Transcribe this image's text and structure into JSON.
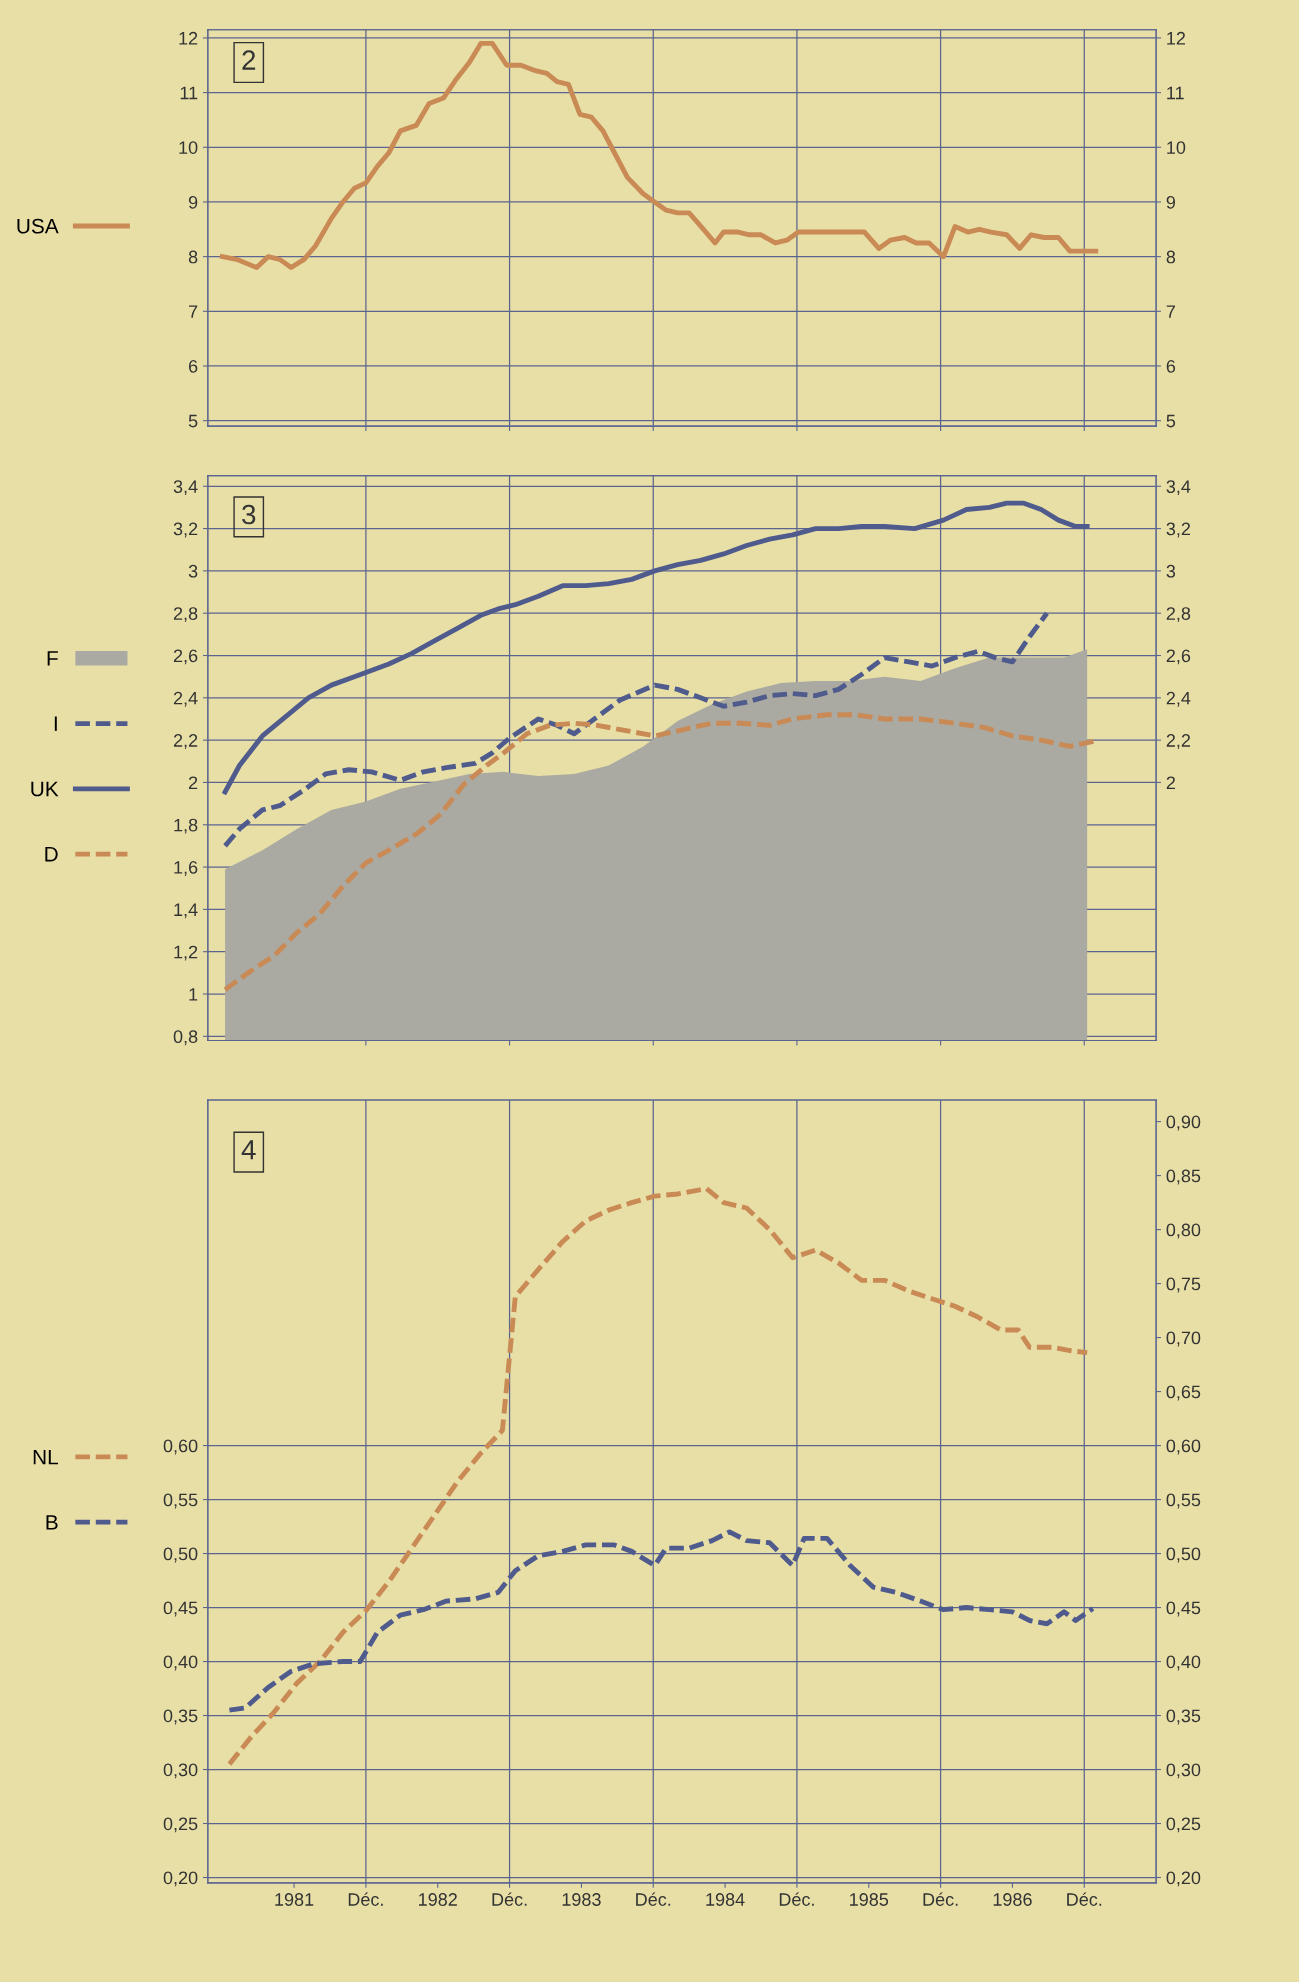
{
  "chart_data": [
    {
      "type": "line",
      "title": "2",
      "xlim": [
        1980.9,
        1987.5
      ],
      "ylim": [
        4.9,
        12.15
      ],
      "yticks": [
        5,
        6,
        7,
        8,
        9,
        10,
        11,
        12
      ],
      "y2lim": [
        4.9,
        12.15
      ],
      "y2ticks": [
        5,
        6,
        7,
        8,
        9,
        10,
        11,
        12
      ],
      "xticks": [
        {
          "value": 1982,
          "label": null
        },
        {
          "value": 1983,
          "label": null
        },
        {
          "value": 1984,
          "label": null
        },
        {
          "value": 1985,
          "label": null
        },
        {
          "value": 1986,
          "label": null
        },
        {
          "value": 1987,
          "label": null
        }
      ],
      "tick_labels": "y",
      "grid": "y",
      "legend": "left",
      "ref_lines": [
        {
          "axis": "x",
          "value": 1982,
          "color": "#5b6491"
        },
        {
          "axis": "x",
          "value": 1983,
          "color": "#5b6491"
        },
        {
          "axis": "x",
          "value": 1984,
          "color": "#5b6491"
        },
        {
          "axis": "x",
          "value": 1985,
          "color": "#5b6491"
        },
        {
          "axis": "x",
          "value": 1986,
          "color": "#5b6491"
        },
        {
          "axis": "x",
          "value": 1987,
          "color": "#5b6491"
        }
      ],
      "series": [
        {
          "name": "USA",
          "color": "#c98a55",
          "line_style": "solid",
          "x": [
            1981.0,
            1981.1,
            1981.24,
            1981.32,
            1981.4,
            1981.48,
            1981.57,
            1981.65,
            1981.76,
            1981.84,
            1981.92,
            1982.0,
            1982.08,
            1982.16,
            1982.24,
            1982.35,
            1982.44,
            1982.54,
            1982.63,
            1982.72,
            1982.8,
            1982.88,
            1982.98,
            1983.08,
            1983.18,
            1983.26,
            1983.33,
            1983.41,
            1983.49,
            1983.57,
            1983.65,
            1983.73,
            1983.82,
            1983.93,
            1984.01,
            1984.09,
            1984.17,
            1984.25,
            1984.35,
            1984.43,
            1984.49,
            1984.59,
            1984.67,
            1984.75,
            1984.85,
            1984.93,
            1985.01,
            1985.11,
            1985.21,
            1985.29,
            1985.39,
            1985.47,
            1985.57,
            1985.65,
            1985.75,
            1985.83,
            1985.92,
            1986.02,
            1986.1,
            1986.19,
            1986.27,
            1986.35,
            1986.46,
            1986.55,
            1986.63,
            1986.72,
            1986.82,
            1986.9,
            1987.0,
            1987.08
          ],
          "values": [
            8.0,
            7.95,
            7.8,
            8.0,
            7.95,
            7.8,
            7.95,
            8.2,
            8.7,
            9.0,
            9.25,
            9.35,
            9.65,
            9.9,
            10.3,
            10.4,
            10.8,
            10.9,
            11.25,
            11.55,
            11.9,
            11.9,
            11.5,
            11.5,
            11.4,
            11.35,
            11.2,
            11.15,
            10.6,
            10.55,
            10.3,
            9.9,
            9.45,
            9.15,
            9.0,
            8.85,
            8.8,
            8.8,
            8.5,
            8.25,
            8.45,
            8.45,
            8.4,
            8.4,
            8.25,
            8.3,
            8.45,
            8.45,
            8.45,
            8.45,
            8.45,
            8.45,
            8.15,
            8.3,
            8.35,
            8.25,
            8.25,
            8.0,
            8.55,
            8.45,
            8.5,
            8.45,
            8.4,
            8.15,
            8.4,
            8.35,
            8.35,
            8.1,
            8.1,
            8.1
          ]
        }
      ]
    },
    {
      "type": "line",
      "title": "3",
      "xlim": [
        1980.9,
        1987.5
      ],
      "ylim": [
        0.78,
        3.45
      ],
      "yticks": [
        {
          "value": 0.8,
          "label": "0,8"
        },
        {
          "value": 1,
          "label": "1"
        },
        {
          "value": 1.2,
          "label": "1,2"
        },
        {
          "value": 1.4,
          "label": "1,4"
        },
        {
          "value": 1.6,
          "label": "1,6"
        },
        {
          "value": 1.8,
          "label": "1,8"
        },
        {
          "value": 2,
          "label": "2"
        },
        {
          "value": 2.2,
          "label": "2,2"
        },
        {
          "value": 2.4,
          "label": "2,4"
        },
        {
          "value": 2.6,
          "label": "2,6"
        },
        {
          "value": 2.8,
          "label": "2,8"
        },
        {
          "value": 3,
          "label": "3"
        },
        {
          "value": 3.2,
          "label": "3,2"
        },
        {
          "value": 3.4,
          "label": "3,4"
        }
      ],
      "y2lim": [
        0.78,
        3.45
      ],
      "y2ticks": [
        {
          "value": 2,
          "label": "2"
        },
        {
          "value": 2.2,
          "label": "2,2"
        },
        {
          "value": 2.4,
          "label": "2,4"
        },
        {
          "value": 2.6,
          "label": "2,6"
        },
        {
          "value": 2.8,
          "label": "2,8"
        },
        {
          "value": 3,
          "label": "3"
        },
        {
          "value": 3.2,
          "label": "3,2"
        },
        {
          "value": 3.4,
          "label": "3,4"
        }
      ],
      "xticks": [
        {
          "value": 1982,
          "label": null
        },
        {
          "value": 1983,
          "label": null
        },
        {
          "value": 1984,
          "label": null
        },
        {
          "value": 1985,
          "label": null
        },
        {
          "value": 1986,
          "label": null
        },
        {
          "value": 1987,
          "label": null
        }
      ],
      "tick_labels": "y",
      "grid": "y",
      "legend": "left",
      "ref_lines": [
        {
          "axis": "x",
          "value": 1982,
          "color": "#5b6491"
        },
        {
          "axis": "x",
          "value": 1983,
          "color": "#5b6491"
        },
        {
          "axis": "x",
          "value": 1984,
          "color": "#5b6491"
        },
        {
          "axis": "x",
          "value": 1985,
          "color": "#5b6491"
        },
        {
          "axis": "x",
          "value": 1986,
          "color": "#5b6491"
        },
        {
          "axis": "x",
          "value": 1987,
          "color": "#5b6491"
        }
      ],
      "series": [
        {
          "name": "F",
          "type": "area",
          "color": "#aaa9a2",
          "x": [
            1981.02,
            1981.28,
            1981.52,
            1981.76,
            1982.0,
            1982.24,
            1982.52,
            1982.72,
            1982.96,
            1983.2,
            1983.45,
            1983.69,
            1983.93,
            1984.17,
            1984.41,
            1984.65,
            1984.89,
            1985.13,
            1985.37,
            1985.61,
            1985.86,
            1986.1,
            1986.34,
            1986.58,
            1986.86,
            1987.02
          ],
          "values": [
            1.59,
            1.68,
            1.78,
            1.87,
            1.91,
            1.97,
            2.01,
            2.04,
            2.05,
            2.03,
            2.04,
            2.08,
            2.17,
            2.29,
            2.37,
            2.43,
            2.47,
            2.48,
            2.48,
            2.5,
            2.48,
            2.54,
            2.59,
            2.59,
            2.59,
            2.63
          ]
        },
        {
          "name": "I",
          "color": "#4f5b8c",
          "line_style": "dashed",
          "x": [
            1981.02,
            1981.12,
            1981.28,
            1981.4,
            1981.56,
            1981.72,
            1981.88,
            1982.04,
            1982.24,
            1982.4,
            1982.56,
            1982.76,
            1982.88,
            1983.0,
            1983.2,
            1983.33,
            1983.45,
            1983.61,
            1983.77,
            1984.01,
            1984.17,
            1984.33,
            1984.49,
            1984.65,
            1984.81,
            1984.97,
            1985.13,
            1985.29,
            1985.45,
            1985.61,
            1985.78,
            1985.94,
            1986.1,
            1986.26,
            1986.38,
            1986.5,
            1986.62,
            1986.74
          ],
          "values": [
            1.7,
            1.78,
            1.87,
            1.89,
            1.96,
            2.04,
            2.06,
            2.05,
            2.01,
            2.05,
            2.07,
            2.09,
            2.14,
            2.21,
            2.3,
            2.27,
            2.23,
            2.31,
            2.39,
            2.46,
            2.44,
            2.4,
            2.36,
            2.38,
            2.41,
            2.42,
            2.41,
            2.44,
            2.51,
            2.59,
            2.57,
            2.55,
            2.59,
            2.62,
            2.59,
            2.57,
            2.69,
            2.8
          ]
        },
        {
          "name": "UK",
          "color": "#4f5b8c",
          "line_style": "solid",
          "x": [
            1981.02,
            1981.12,
            1981.28,
            1981.44,
            1981.6,
            1981.76,
            1981.92,
            1982.0,
            1982.16,
            1982.32,
            1982.48,
            1982.64,
            1982.8,
            1982.92,
            1983.04,
            1983.2,
            1983.37,
            1983.53,
            1983.69,
            1983.85,
            1984.01,
            1984.17,
            1984.33,
            1984.49,
            1984.65,
            1984.81,
            1984.97,
            1985.13,
            1985.29,
            1985.45,
            1985.61,
            1985.82,
            1986.02,
            1986.18,
            1986.34,
            1986.46,
            1986.58,
            1986.7,
            1986.82,
            1986.94,
            1987.02
          ],
          "values": [
            1.955,
            2.08,
            2.22,
            2.31,
            2.4,
            2.46,
            2.5,
            2.52,
            2.56,
            2.61,
            2.67,
            2.73,
            2.79,
            2.82,
            2.84,
            2.88,
            2.93,
            2.93,
            2.94,
            2.96,
            3.0,
            3.03,
            3.05,
            3.08,
            3.12,
            3.15,
            3.17,
            3.2,
            3.2,
            3.21,
            3.21,
            3.2,
            3.24,
            3.29,
            3.3,
            3.32,
            3.32,
            3.29,
            3.24,
            3.21,
            3.21
          ]
        },
        {
          "name": "D",
          "color": "#c98a55",
          "line_style": "dashed",
          "x": [
            1981.02,
            1981.2,
            1981.36,
            1981.52,
            1981.68,
            1981.84,
            1982.0,
            1982.16,
            1982.36,
            1982.52,
            1982.68,
            1982.84,
            1982.96,
            1983.12,
            1983.28,
            1983.45,
            1983.61,
            1983.77,
            1984.01,
            1984.21,
            1984.41,
            1984.61,
            1984.81,
            1984.97,
            1985.21,
            1985.41,
            1985.61,
            1985.86,
            1986.1,
            1986.3,
            1986.5,
            1986.7,
            1986.9,
            1987.1
          ],
          "values": [
            1.02,
            1.11,
            1.18,
            1.29,
            1.38,
            1.51,
            1.62,
            1.68,
            1.76,
            1.85,
            1.99,
            2.08,
            2.14,
            2.23,
            2.27,
            2.28,
            2.27,
            2.25,
            2.22,
            2.25,
            2.28,
            2.28,
            2.27,
            2.3,
            2.32,
            2.32,
            2.3,
            2.3,
            2.28,
            2.26,
            2.22,
            2.2,
            2.17,
            2.2
          ]
        }
      ]
    },
    {
      "type": "line",
      "title": "4",
      "xlim": [
        1980.9,
        1987.5
      ],
      "ylim": [
        0.195,
        0.92
      ],
      "yticks": [
        {
          "value": 0.2,
          "label": "0,20"
        },
        {
          "value": 0.25,
          "label": "0,25"
        },
        {
          "value": 0.3,
          "label": "0,30"
        },
        {
          "value": 0.35,
          "label": "0,35"
        },
        {
          "value": 0.4,
          "label": "0,40"
        },
        {
          "value": 0.45,
          "label": "0,45"
        },
        {
          "value": 0.5,
          "label": "0,50"
        },
        {
          "value": 0.55,
          "label": "0,55"
        },
        {
          "value": 0.6,
          "label": "0,60"
        }
      ],
      "y2lim": [
        0.195,
        0.92
      ],
      "y2ticks": [
        {
          "value": 0.2,
          "label": "0,20"
        },
        {
          "value": 0.25,
          "label": "0,25"
        },
        {
          "value": 0.3,
          "label": "0,30"
        },
        {
          "value": 0.35,
          "label": "0,35"
        },
        {
          "value": 0.4,
          "label": "0,40"
        },
        {
          "value": 0.45,
          "label": "0,45"
        },
        {
          "value": 0.5,
          "label": "0,50"
        },
        {
          "value": 0.55,
          "label": "0,55"
        },
        {
          "value": 0.6,
          "label": "0,60"
        },
        {
          "value": 0.65,
          "label": "0,65"
        },
        {
          "value": 0.7,
          "label": "0,70"
        },
        {
          "value": 0.75,
          "label": "0,75"
        },
        {
          "value": 0.8,
          "label": "0,80"
        },
        {
          "value": 0.85,
          "label": "0,85"
        },
        {
          "value": 0.9,
          "label": "0,90"
        }
      ],
      "xticks": [
        {
          "value": 1981.5,
          "label": "1981"
        },
        {
          "value": 1982,
          "label": "Déc."
        },
        {
          "value": 1982.5,
          "label": "1982"
        },
        {
          "value": 1983,
          "label": "Déc."
        },
        {
          "value": 1983.5,
          "label": "1983"
        },
        {
          "value": 1984,
          "label": "Déc."
        },
        {
          "value": 1984.5,
          "label": "1984"
        },
        {
          "value": 1985,
          "label": "Déc."
        },
        {
          "value": 1985.5,
          "label": "1985"
        },
        {
          "value": 1986,
          "label": "Déc."
        },
        {
          "value": 1986.5,
          "label": "1986"
        },
        {
          "value": 1987,
          "label": "Déc."
        }
      ],
      "grid": "y",
      "legend": "left",
      "ref_lines": [
        {
          "axis": "x",
          "value": 1982,
          "color": "#5b6491"
        },
        {
          "axis": "x",
          "value": 1983,
          "color": "#5b6491"
        },
        {
          "axis": "x",
          "value": 1984,
          "color": "#5b6491"
        },
        {
          "axis": "x",
          "value": 1985,
          "color": "#5b6491"
        },
        {
          "axis": "x",
          "value": 1986,
          "color": "#5b6491"
        },
        {
          "axis": "x",
          "value": 1987,
          "color": "#5b6491"
        }
      ],
      "series": [
        {
          "name": "NL",
          "color": "#c98a55",
          "line_style": "dashed",
          "x": [
            1981.05,
            1981.2,
            1981.36,
            1981.52,
            1981.68,
            1981.84,
            1982.0,
            1982.16,
            1982.32,
            1982.48,
            1982.64,
            1982.8,
            1982.95,
            1983.04,
            1983.2,
            1983.37,
            1983.53,
            1983.69,
            1983.85,
            1984.01,
            1984.17,
            1984.37,
            1984.49,
            1984.65,
            1984.81,
            1984.97,
            1985.13,
            1985.29,
            1985.45,
            1985.61,
            1985.78,
            1985.94,
            1986.1,
            1986.26,
            1986.42,
            1986.54,
            1986.62,
            1986.78,
            1986.9,
            1987.02
          ],
          "values": [
            0.305,
            0.33,
            0.353,
            0.38,
            0.4,
            0.427,
            0.447,
            0.474,
            0.505,
            0.536,
            0.567,
            0.593,
            0.614,
            0.738,
            0.763,
            0.789,
            0.808,
            0.818,
            0.825,
            0.831,
            0.833,
            0.838,
            0.825,
            0.82,
            0.8,
            0.774,
            0.781,
            0.769,
            0.753,
            0.753,
            0.743,
            0.736,
            0.729,
            0.719,
            0.707,
            0.707,
            0.691,
            0.691,
            0.688,
            0.686
          ]
        },
        {
          "name": "B",
          "color": "#4f5b8c",
          "line_style": "dashed",
          "x": [
            1981.05,
            1981.16,
            1981.32,
            1981.48,
            1981.64,
            1981.84,
            1981.96,
            1982.08,
            1982.24,
            1982.4,
            1982.56,
            1982.76,
            1982.92,
            1983.04,
            1983.2,
            1983.37,
            1983.53,
            1983.73,
            1983.85,
            1984.01,
            1984.09,
            1984.25,
            1984.41,
            1984.53,
            1984.65,
            1984.81,
            1984.97,
            1985.05,
            1985.21,
            1985.37,
            1985.53,
            1985.69,
            1985.86,
            1986.02,
            1986.18,
            1986.34,
            1986.5,
            1986.62,
            1986.74,
            1986.86,
            1986.94,
            1987.06
          ],
          "values": [
            0.355,
            0.357,
            0.376,
            0.391,
            0.398,
            0.4,
            0.4,
            0.427,
            0.443,
            0.448,
            0.456,
            0.458,
            0.464,
            0.484,
            0.498,
            0.502,
            0.508,
            0.508,
            0.502,
            0.489,
            0.505,
            0.505,
            0.512,
            0.52,
            0.512,
            0.51,
            0.489,
            0.514,
            0.514,
            0.489,
            0.469,
            0.464,
            0.456,
            0.448,
            0.45,
            0.448,
            0.446,
            0.438,
            0.435,
            0.446,
            0.438,
            0.449
          ]
        }
      ]
    }
  ]
}
